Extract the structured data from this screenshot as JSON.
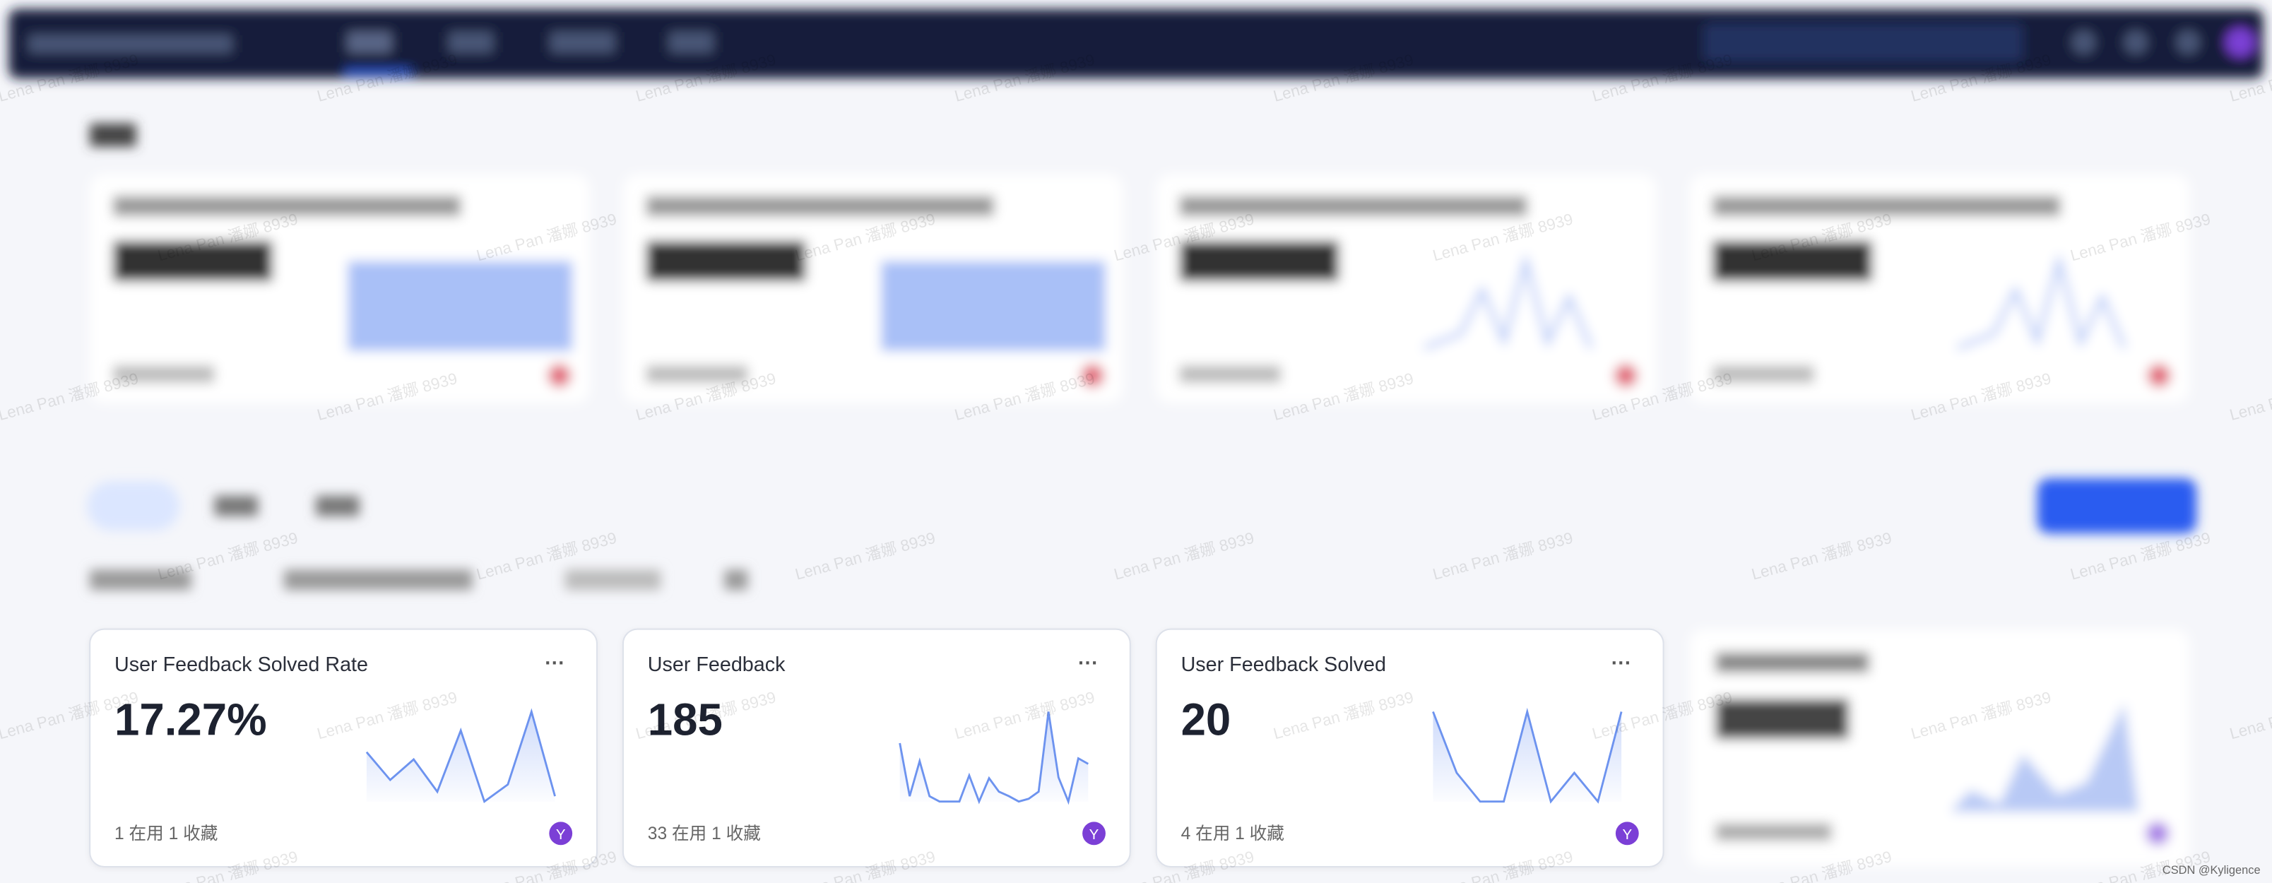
{
  "cards": [
    {
      "title": "User Feedback Solved Rate",
      "value": "17.27%",
      "footer": "1 在用 1 收藏",
      "avatar": "Y",
      "more": "···",
      "sparkline": [
        55,
        24,
        47,
        11,
        79,
        0,
        19,
        100,
        6
      ]
    },
    {
      "title": "User Feedback",
      "value": "185",
      "footer": "33 在用 1 收藏",
      "avatar": "Y",
      "more": "···",
      "sparkline": [
        65,
        6,
        45,
        6,
        0,
        0,
        0,
        29,
        0,
        26,
        11,
        6,
        0,
        3,
        11,
        100,
        27,
        0,
        48,
        42
      ]
    },
    {
      "title": "User Feedback Solved",
      "value": "20",
      "footer": "4 在用 1 收藏",
      "avatar": "Y",
      "more": "···",
      "sparkline": [
        100,
        32,
        0,
        0,
        100,
        0,
        32,
        0,
        100
      ]
    }
  ],
  "watermark": "Lena Pan 潘娜 8939",
  "credit": "CSDN @Kyligence"
}
